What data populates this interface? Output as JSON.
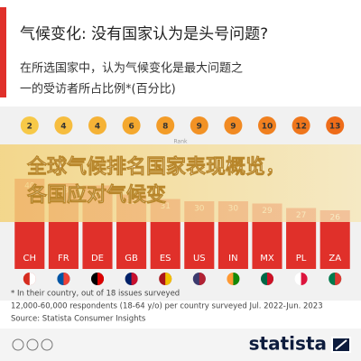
{
  "chart_data": {
    "type": "bar",
    "title": "气候变化: 没有国家认为是头号问题?",
    "subtitle_lines": [
      "在所选国家中，认为气候变化是最大问题之",
      "一的受访者所占比例*(百分比)"
    ],
    "rank_label": "Rank",
    "ranks": [
      2,
      4,
      4,
      6,
      8,
      9,
      9,
      10,
      12,
      13
    ],
    "categories": [
      "CH",
      "FR",
      "DE",
      "GB",
      "ES",
      "US",
      "IN",
      "MX",
      "PL",
      "ZA"
    ],
    "values": [
      40,
      38,
      37,
      33,
      31,
      30,
      30,
      29,
      27,
      26
    ],
    "color": "#e0302a",
    "ylim": [
      0,
      50
    ],
    "overlay_lines": [
      "全球气候排名国家表现概览，",
      "各国应对气候变"
    ],
    "notes": [
      "* In their country, out of 18 issues surveyed",
      "12,000-60,000 respondents (18-64 y/o) per country surveyed Jul. 2022-Jun. 2023",
      "Source: Statista Consumer Insights"
    ],
    "brand": "statista"
  }
}
